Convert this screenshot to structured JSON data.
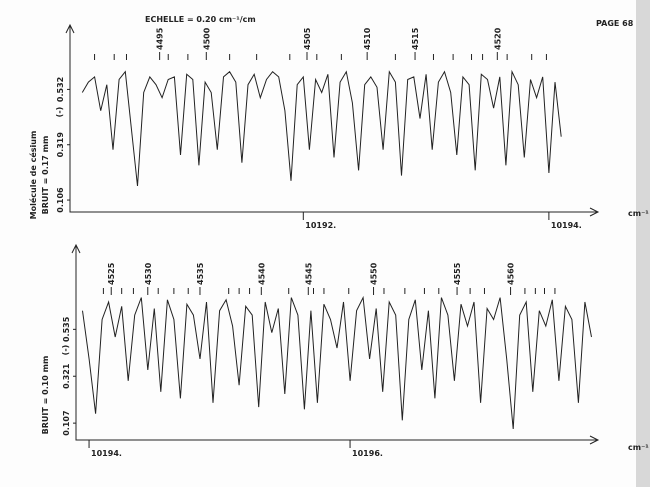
{
  "header": {
    "scale": "ECHELLE = 0.20 cm⁻¹/cm",
    "page": "PAGE 68",
    "molecule": "Molécule de césium"
  },
  "chart_data": [
    {
      "type": "line",
      "noise": "BRUIT = 0.17 mm",
      "x_unit": "cm⁻¹",
      "y_label": "(-)",
      "color": "#222222",
      "xlim": [
        10190.1,
        10194.4
      ],
      "ylim": [
        0.06,
        0.78
      ],
      "xticks": [
        {
          "value": 10192,
          "label": "10192."
        },
        {
          "value": 10194,
          "label": "10194."
        }
      ],
      "yticks": [
        0.532,
        0.319,
        0.106
      ],
      "x": [
        10190.2,
        10190.25,
        10190.3,
        10190.35,
        10190.4,
        10190.45,
        10190.5,
        10190.55,
        10190.6,
        10190.65,
        10190.7,
        10190.75,
        10190.8,
        10190.85,
        10190.9,
        10190.95,
        10191,
        10191.05,
        10191.1,
        10191.15,
        10191.2,
        10191.25,
        10191.3,
        10191.35,
        10191.4,
        10191.45,
        10191.5,
        10191.55,
        10191.6,
        10191.65,
        10191.7,
        10191.75,
        10191.8,
        10191.85,
        10191.9,
        10191.95,
        10192,
        10192.05,
        10192.1,
        10192.15,
        10192.2,
        10192.25,
        10192.3,
        10192.35,
        10192.4,
        10192.45,
        10192.5,
        10192.55,
        10192.6,
        10192.65,
        10192.7,
        10192.75,
        10192.8,
        10192.85,
        10192.9,
        10192.95,
        10193,
        10193.05,
        10193.1,
        10193.15,
        10193.2,
        10193.25,
        10193.3,
        10193.35,
        10193.4,
        10193.45,
        10193.5,
        10193.55,
        10193.6,
        10193.65,
        10193.7,
        10193.75,
        10193.8,
        10193.85,
        10193.9,
        10193.95,
        10194,
        10194.05,
        10194.1
      ],
      "values": [
        0.52,
        0.56,
        0.58,
        0.45,
        0.55,
        0.3,
        0.57,
        0.6,
        0.38,
        0.16,
        0.52,
        0.58,
        0.55,
        0.5,
        0.57,
        0.58,
        0.28,
        0.59,
        0.57,
        0.24,
        0.56,
        0.52,
        0.3,
        0.58,
        0.6,
        0.56,
        0.25,
        0.55,
        0.59,
        0.5,
        0.57,
        0.6,
        0.58,
        0.45,
        0.18,
        0.55,
        0.58,
        0.3,
        0.57,
        0.52,
        0.59,
        0.27,
        0.56,
        0.6,
        0.48,
        0.22,
        0.55,
        0.58,
        0.54,
        0.3,
        0.6,
        0.56,
        0.2,
        0.57,
        0.58,
        0.42,
        0.59,
        0.3,
        0.56,
        0.6,
        0.52,
        0.28,
        0.58,
        0.55,
        0.22,
        0.59,
        0.57,
        0.46,
        0.58,
        0.24,
        0.6,
        0.55,
        0.27,
        0.57,
        0.5,
        0.58,
        0.21,
        0.56,
        0.35
      ],
      "annotations": [
        {
          "text": "4495",
          "x": 10190.83
        },
        {
          "text": "4500",
          "x": 10191.21
        },
        {
          "text": "4505",
          "x": 10192.03
        },
        {
          "text": "4510",
          "x": 10192.52
        },
        {
          "text": "4515",
          "x": 10192.91
        },
        {
          "text": "4520",
          "x": 10193.58
        }
      ],
      "line_marks": [
        10190.3,
        10190.46,
        10190.56,
        10190.9,
        10191.06,
        10191.4,
        10191.62,
        10191.89,
        10192.11,
        10192.31,
        10192.75,
        10193.06,
        10193.22,
        10193.37,
        10193.46,
        10193.66,
        10193.86,
        10193.98
      ]
    },
    {
      "type": "line",
      "noise": "BRUIT = 0.10 mm",
      "x_unit": "cm⁻¹",
      "y_label": "(-)",
      "color": "#222222",
      "xlim": [
        10193.9,
        10197.9
      ],
      "ylim": [
        0.03,
        0.92
      ],
      "xticks": [
        {
          "value": 10194,
          "label": "10194."
        },
        {
          "value": 10196,
          "label": "10196."
        }
      ],
      "yticks": [
        0.535,
        0.321,
        0.107
      ],
      "x": [
        10193.95,
        10194,
        10194.05,
        10194.1,
        10194.15,
        10194.2,
        10194.25,
        10194.3,
        10194.35,
        10194.4,
        10194.45,
        10194.5,
        10194.55,
        10194.6,
        10194.65,
        10194.7,
        10194.75,
        10194.8,
        10194.85,
        10194.9,
        10194.95,
        10195,
        10195.05,
        10195.1,
        10195.15,
        10195.2,
        10195.25,
        10195.3,
        10195.35,
        10195.4,
        10195.45,
        10195.5,
        10195.55,
        10195.6,
        10195.65,
        10195.7,
        10195.75,
        10195.8,
        10195.85,
        10195.9,
        10195.95,
        10196,
        10196.05,
        10196.1,
        10196.15,
        10196.2,
        10196.25,
        10196.3,
        10196.35,
        10196.4,
        10196.45,
        10196.5,
        10196.55,
        10196.6,
        10196.65,
        10196.7,
        10196.75,
        10196.8,
        10196.85,
        10196.9,
        10196.95,
        10197,
        10197.05,
        10197.1,
        10197.15,
        10197.2,
        10197.25,
        10197.3,
        10197.35,
        10197.4,
        10197.45,
        10197.5,
        10197.55,
        10197.6,
        10197.65,
        10197.7,
        10197.75,
        10197.8,
        10197.85
      ],
      "values": [
        0.62,
        0.4,
        0.15,
        0.58,
        0.66,
        0.5,
        0.64,
        0.3,
        0.6,
        0.68,
        0.35,
        0.63,
        0.25,
        0.67,
        0.58,
        0.22,
        0.65,
        0.6,
        0.4,
        0.66,
        0.2,
        0.62,
        0.67,
        0.55,
        0.28,
        0.64,
        0.6,
        0.18,
        0.66,
        0.52,
        0.63,
        0.24,
        0.68,
        0.6,
        0.17,
        0.62,
        0.2,
        0.65,
        0.58,
        0.45,
        0.66,
        0.3,
        0.62,
        0.68,
        0.4,
        0.63,
        0.25,
        0.66,
        0.6,
        0.12,
        0.58,
        0.67,
        0.35,
        0.62,
        0.22,
        0.68,
        0.6,
        0.3,
        0.65,
        0.55,
        0.66,
        0.2,
        0.63,
        0.58,
        0.68,
        0.4,
        0.08,
        0.6,
        0.66,
        0.25,
        0.62,
        0.55,
        0.67,
        0.3,
        0.64,
        0.58,
        0.2,
        0.66,
        0.5
      ],
      "annotations": [
        {
          "text": "4525",
          "x": 10194.17
        },
        {
          "text": "4530",
          "x": 10194.45
        },
        {
          "text": "4535",
          "x": 10194.85
        },
        {
          "text": "4540",
          "x": 10195.32
        },
        {
          "text": "4545",
          "x": 10195.68
        },
        {
          "text": "4550",
          "x": 10196.18
        },
        {
          "text": "4555",
          "x": 10196.82
        },
        {
          "text": "4560",
          "x": 10197.23
        }
      ],
      "line_marks": [
        10194.11,
        10194.25,
        10194.34,
        10194.53,
        10194.65,
        10194.76,
        10195.07,
        10195.15,
        10195.23,
        10195.53,
        10195.72,
        10195.8,
        10195.99,
        10196.26,
        10196.42,
        10196.57,
        10196.68,
        10196.92,
        10197.03,
        10197.34,
        10197.42,
        10197.49,
        10197.57
      ]
    }
  ]
}
